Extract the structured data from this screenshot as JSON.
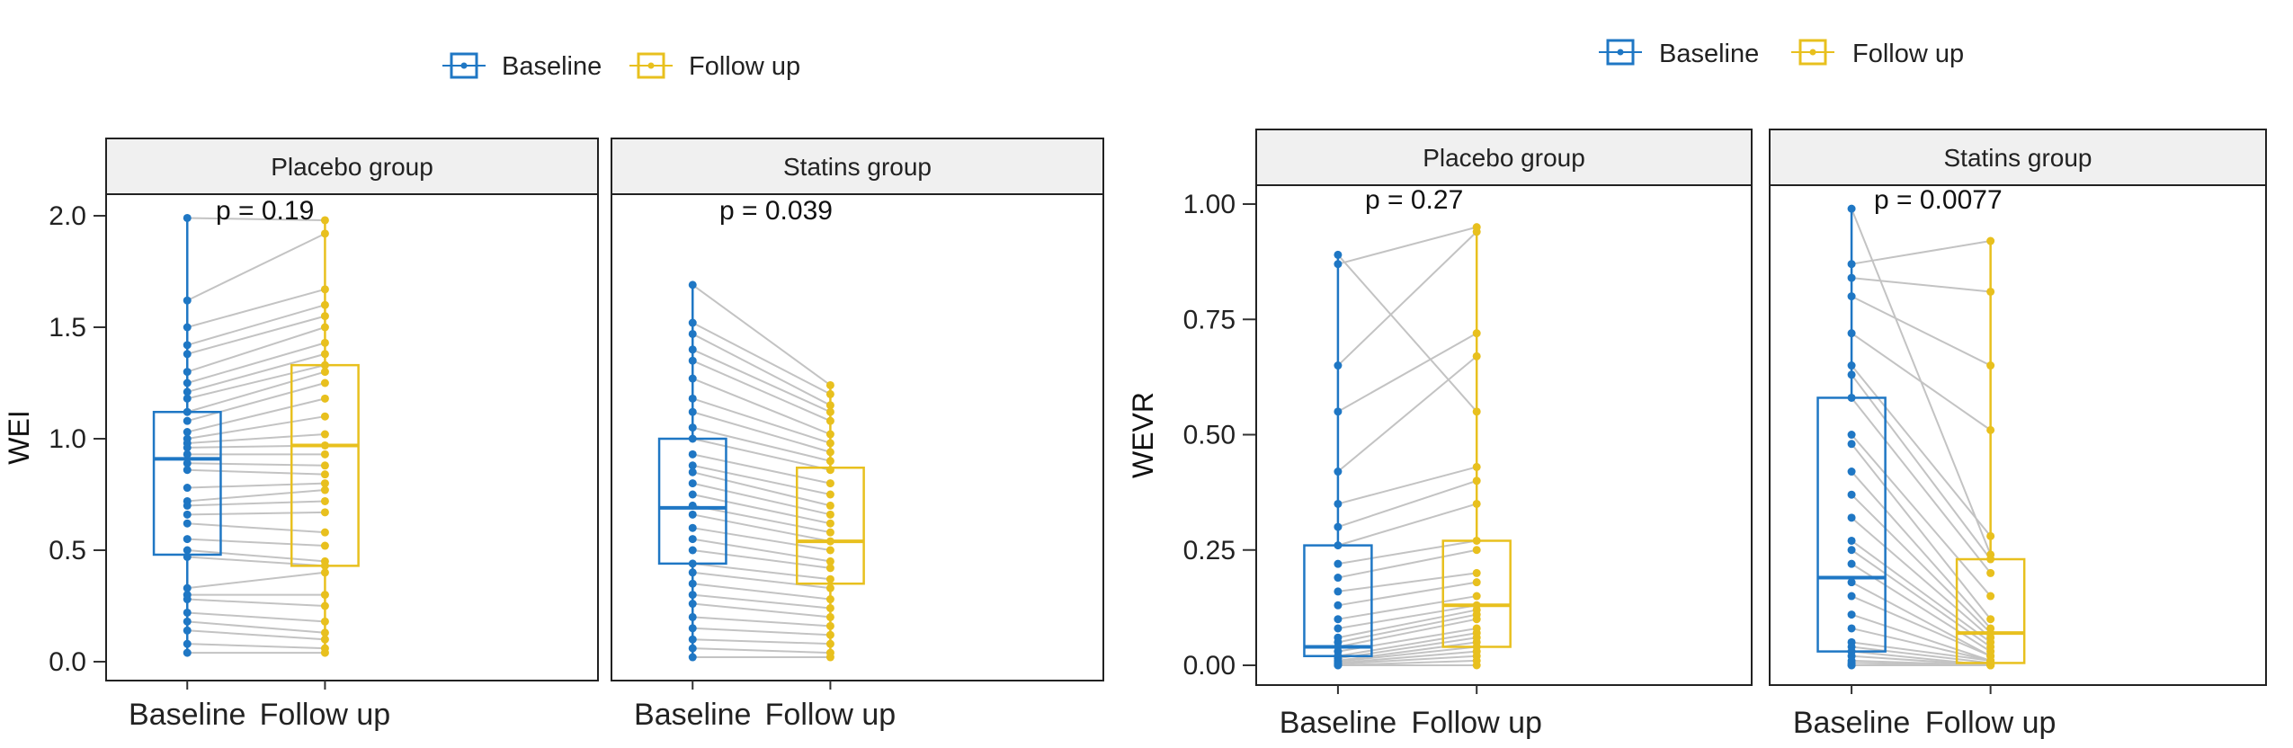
{
  "colors": {
    "baseline": "#1f77c4",
    "followup": "#e8c01e",
    "pairline": "#c3c3c3",
    "strip_bg": "#f0f0f0"
  },
  "legend": {
    "baseline_label": "Baseline",
    "followup_label": "Follow up",
    "baseline_icon": "boxplot-key-icon",
    "followup_icon": "boxplot-key-icon"
  },
  "chart_data": [
    {
      "type": "boxplot-paired",
      "ylabel": "WEI",
      "ylim": [
        0,
        2.0
      ],
      "yticks": [
        0.0,
        0.5,
        1.0,
        1.5,
        2.0
      ],
      "ytick_labels": [
        "0.0",
        "0.5",
        "1.0",
        "1.5",
        "2.0"
      ],
      "categories": [
        "Baseline",
        "Follow up"
      ],
      "panels": [
        {
          "title": "Placebo group",
          "p_label": "p = 0.19",
          "boxes": {
            "Baseline": {
              "q1": 0.48,
              "median": 0.91,
              "q3": 1.12,
              "min": 0.04,
              "max": 1.99
            },
            "Follow up": {
              "q1": 0.43,
              "median": 0.97,
              "q3": 1.33,
              "min": 0.04,
              "max": 1.98
            }
          },
          "pairs": [
            [
              1.99,
              1.98
            ],
            [
              1.62,
              1.92
            ],
            [
              1.5,
              1.67
            ],
            [
              1.42,
              1.6
            ],
            [
              1.38,
              1.55
            ],
            [
              1.3,
              1.5
            ],
            [
              1.25,
              1.43
            ],
            [
              1.21,
              1.38
            ],
            [
              1.18,
              1.33
            ],
            [
              1.12,
              1.3
            ],
            [
              1.08,
              1.25
            ],
            [
              1.03,
              1.18
            ],
            [
              1.0,
              1.1
            ],
            [
              0.98,
              1.02
            ],
            [
              0.96,
              0.97
            ],
            [
              0.93,
              0.93
            ],
            [
              0.89,
              0.88
            ],
            [
              0.86,
              0.84
            ],
            [
              0.78,
              0.8
            ],
            [
              0.72,
              0.77
            ],
            [
              0.7,
              0.72
            ],
            [
              0.66,
              0.67
            ],
            [
              0.62,
              0.58
            ],
            [
              0.55,
              0.52
            ],
            [
              0.5,
              0.45
            ],
            [
              0.47,
              0.43
            ],
            [
              0.33,
              0.4
            ],
            [
              0.3,
              0.3
            ],
            [
              0.28,
              0.25
            ],
            [
              0.22,
              0.18
            ],
            [
              0.18,
              0.13
            ],
            [
              0.14,
              0.1
            ],
            [
              0.08,
              0.06
            ],
            [
              0.04,
              0.04
            ]
          ]
        },
        {
          "title": "Statins group",
          "p_label": "p = 0.039",
          "boxes": {
            "Baseline": {
              "q1": 0.44,
              "median": 0.69,
              "q3": 1.0,
              "min": 0.02,
              "max": 1.69
            },
            "Follow up": {
              "q1": 0.35,
              "median": 0.54,
              "q3": 0.87,
              "min": 0.02,
              "max": 1.24
            }
          },
          "pairs": [
            [
              1.69,
              1.24
            ],
            [
              1.52,
              1.2
            ],
            [
              1.47,
              1.15
            ],
            [
              1.4,
              1.12
            ],
            [
              1.35,
              1.08
            ],
            [
              1.27,
              1.02
            ],
            [
              1.18,
              0.98
            ],
            [
              1.12,
              0.94
            ],
            [
              1.05,
              0.9
            ],
            [
              1.0,
              0.86
            ],
            [
              0.93,
              0.8
            ],
            [
              0.88,
              0.75
            ],
            [
              0.85,
              0.7
            ],
            [
              0.8,
              0.66
            ],
            [
              0.75,
              0.62
            ],
            [
              0.7,
              0.58
            ],
            [
              0.66,
              0.54
            ],
            [
              0.6,
              0.5
            ],
            [
              0.55,
              0.45
            ],
            [
              0.5,
              0.42
            ],
            [
              0.44,
              0.37
            ],
            [
              0.4,
              0.33
            ],
            [
              0.35,
              0.28
            ],
            [
              0.3,
              0.24
            ],
            [
              0.26,
              0.2
            ],
            [
              0.2,
              0.16
            ],
            [
              0.15,
              0.12
            ],
            [
              0.1,
              0.08
            ],
            [
              0.06,
              0.04
            ],
            [
              0.02,
              0.02
            ]
          ]
        }
      ]
    },
    {
      "type": "boxplot-paired",
      "ylabel": "WEVR",
      "ylim": [
        0,
        1.0
      ],
      "yticks": [
        0.0,
        0.25,
        0.5,
        0.75,
        1.0
      ],
      "ytick_labels": [
        "0.00",
        "0.25",
        "0.50",
        "0.75",
        "1.00"
      ],
      "categories": [
        "Baseline",
        "Follow up"
      ],
      "panels": [
        {
          "title": "Placebo group",
          "p_label": "p = 0.27",
          "boxes": {
            "Baseline": {
              "q1": 0.02,
              "median": 0.04,
              "q3": 0.26,
              "min": 0.0,
              "max": 0.89
            },
            "Follow up": {
              "q1": 0.04,
              "median": 0.13,
              "q3": 0.27,
              "min": 0.0,
              "max": 0.95
            }
          },
          "pairs": [
            [
              0.89,
              0.55
            ],
            [
              0.87,
              0.95
            ],
            [
              0.65,
              0.94
            ],
            [
              0.55,
              0.72
            ],
            [
              0.42,
              0.67
            ],
            [
              0.35,
              0.43
            ],
            [
              0.3,
              0.4
            ],
            [
              0.26,
              0.35
            ],
            [
              0.22,
              0.27
            ],
            [
              0.19,
              0.25
            ],
            [
              0.16,
              0.2
            ],
            [
              0.13,
              0.18
            ],
            [
              0.1,
              0.15
            ],
            [
              0.08,
              0.13
            ],
            [
              0.06,
              0.12
            ],
            [
              0.05,
              0.11
            ],
            [
              0.04,
              0.1
            ],
            [
              0.03,
              0.08
            ],
            [
              0.02,
              0.07
            ],
            [
              0.015,
              0.06
            ],
            [
              0.01,
              0.05
            ],
            [
              0.008,
              0.04
            ],
            [
              0.005,
              0.03
            ],
            [
              0.003,
              0.02
            ],
            [
              0.0,
              0.01
            ],
            [
              0.0,
              0.0
            ]
          ]
        },
        {
          "title": "Statins group",
          "p_label": "p = 0.0077",
          "boxes": {
            "Baseline": {
              "q1": 0.03,
              "median": 0.19,
              "q3": 0.58,
              "min": 0.0,
              "max": 0.99
            },
            "Follow up": {
              "q1": 0.005,
              "median": 0.07,
              "q3": 0.23,
              "min": 0.0,
              "max": 0.92
            }
          },
          "pairs": [
            [
              0.99,
              0.24
            ],
            [
              0.87,
              0.92
            ],
            [
              0.84,
              0.81
            ],
            [
              0.8,
              0.65
            ],
            [
              0.72,
              0.51
            ],
            [
              0.65,
              0.28
            ],
            [
              0.63,
              0.23
            ],
            [
              0.58,
              0.2
            ],
            [
              0.5,
              0.15
            ],
            [
              0.48,
              0.1
            ],
            [
              0.42,
              0.08
            ],
            [
              0.37,
              0.07
            ],
            [
              0.32,
              0.06
            ],
            [
              0.27,
              0.05
            ],
            [
              0.25,
              0.04
            ],
            [
              0.22,
              0.03
            ],
            [
              0.18,
              0.02
            ],
            [
              0.15,
              0.02
            ],
            [
              0.11,
              0.01
            ],
            [
              0.08,
              0.01
            ],
            [
              0.05,
              0.01
            ],
            [
              0.04,
              0.005
            ],
            [
              0.03,
              0.0
            ],
            [
              0.02,
              0.0
            ],
            [
              0.01,
              0.0
            ],
            [
              0.005,
              0.0
            ],
            [
              0.0,
              0.0
            ],
            [
              0.0,
              0.0
            ]
          ]
        }
      ]
    }
  ]
}
